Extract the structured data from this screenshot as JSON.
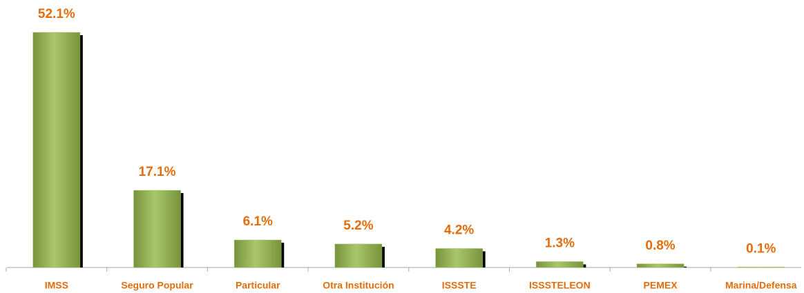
{
  "chart_data": {
    "type": "bar",
    "categories": [
      "IMSS",
      "Seguro Popular",
      "Particular",
      "Otra Institución",
      "ISSSTE",
      "ISSSTELEON",
      "PEMEX",
      "Marina/Defensa"
    ],
    "values": [
      52.1,
      17.1,
      6.1,
      5.2,
      4.2,
      1.3,
      0.8,
      0.1
    ],
    "value_labels": [
      "52.1%",
      "17.1%",
      "6.1%",
      "5.2%",
      "4.2%",
      "1.3%",
      "0.8%",
      "0.1%"
    ],
    "color": "#9bbb59"
  }
}
